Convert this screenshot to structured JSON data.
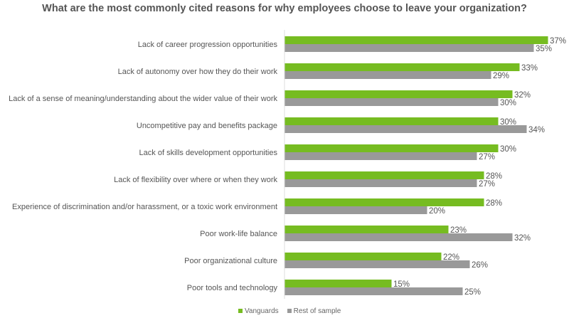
{
  "chart_data": {
    "type": "bar",
    "orientation": "horizontal",
    "title": "What are the most commonly cited reasons for why employees choose to leave your organization?",
    "categories": [
      "Lack of career progression opportunities",
      "Lack of autonomy over how they do their work",
      "Lack of a sense of meaning/understanding about the wider value of their work",
      "Uncompetitive pay and benefits package",
      "Lack of skills development opportunities",
      "Lack of flexibility over where or when they work",
      "Experience of discrimination and/or harassment, or a toxic work environment",
      "Poor work-life balance",
      "Poor organizational culture",
      "Poor tools and technology"
    ],
    "series": [
      {
        "name": "Vanguards",
        "color": "#76bc21",
        "values": [
          37,
          33,
          32,
          30,
          30,
          28,
          28,
          23,
          22,
          15
        ]
      },
      {
        "name": "Rest of sample",
        "color": "#999999",
        "values": [
          35,
          29,
          30,
          34,
          27,
          27,
          20,
          32,
          26,
          25
        ]
      }
    ],
    "unit": "%",
    "legend_position": "bottom",
    "grid": false
  }
}
